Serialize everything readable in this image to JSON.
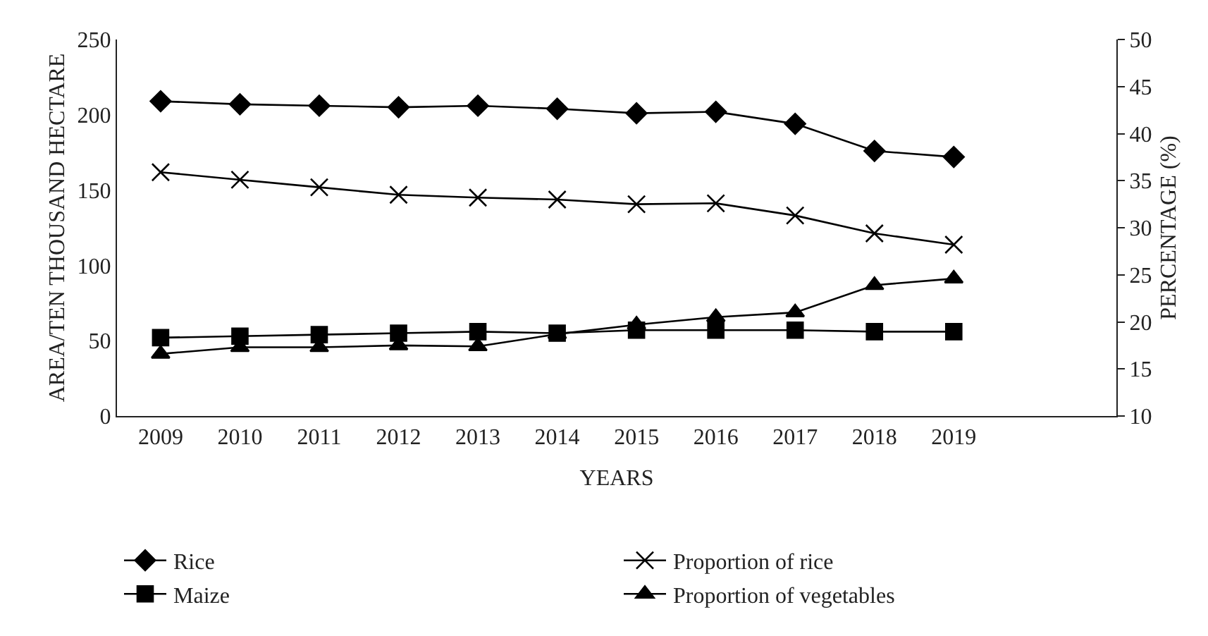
{
  "chart_data": {
    "type": "line",
    "xlabel": "YEARS",
    "ylabel": "AREA/TEN THOUSAND HECTARE",
    "y2label": "PERCENTAGE (%)",
    "categories": [
      "2009",
      "2010",
      "2011",
      "2012",
      "2013",
      "2014",
      "2015",
      "2016",
      "2017",
      "2018",
      "2019"
    ],
    "series": [
      {
        "name": "Rice",
        "color": "#000000",
        "marker": "diamond",
        "values": [
          209,
          207,
          206,
          205,
          206,
          204,
          201,
          202,
          194,
          176,
          172
        ]
      },
      {
        "name": "Proportion of rice",
        "color": "#000000",
        "marker": "cross",
        "axis": "y2",
        "values": [
          35.9,
          35.1,
          34.3,
          33.5,
          33.2,
          33.0,
          32.5,
          32.6,
          31.3,
          29.4,
          28.2
        ]
      },
      {
        "name": "Maize",
        "color": "#000000",
        "marker": "square",
        "values": [
          52,
          53,
          54,
          55,
          56,
          55,
          57,
          57,
          57,
          56,
          56
        ]
      },
      {
        "name": "Proportion of vegetables",
        "color": "#000000",
        "marker": "triangle",
        "axis": "y2",
        "values": [
          16.6,
          17.3,
          17.3,
          17.5,
          17.4,
          18.7,
          19.7,
          20.5,
          21.0,
          23.9,
          24.6
        ]
      }
    ],
    "ylim": [
      0,
      250
    ],
    "yticks": [
      0,
      50,
      100,
      150,
      200,
      250
    ],
    "y2lim": [
      10,
      50
    ],
    "y2ticks": [
      10,
      15,
      20,
      25,
      30,
      35,
      40,
      45,
      50
    ],
    "grid": false,
    "legend": "bottom",
    "line_style": "solid"
  }
}
